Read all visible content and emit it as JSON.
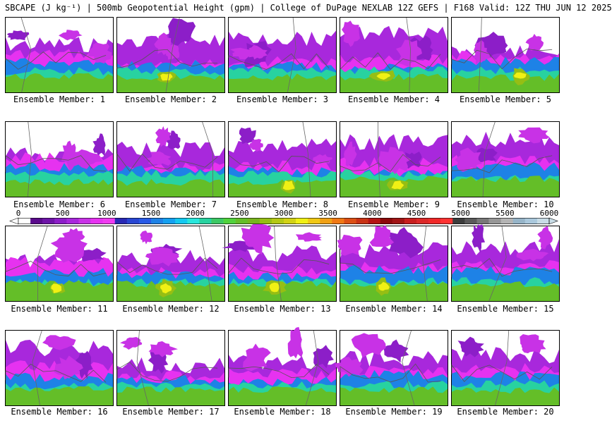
{
  "header": {
    "title": "SBCAPE (J kg⁻¹) | 500mb Geopotential Height (gpm) | College of DuPage NEXLAB 12Z GEFS | F168 Valid: 12Z THU JUN 12 2025"
  },
  "panels": [
    {
      "label": "Ensemble Member: 1",
      "core": false
    },
    {
      "label": "Ensemble Member: 2",
      "core": true
    },
    {
      "label": "Ensemble Member: 3",
      "core": false
    },
    {
      "label": "Ensemble Member: 4",
      "core": true
    },
    {
      "label": "Ensemble Member: 5",
      "core": true
    },
    {
      "label": "Ensemble Member: 6",
      "core": false
    },
    {
      "label": "Ensemble Member: 7",
      "core": false
    },
    {
      "label": "Ensemble Member: 8",
      "core": true
    },
    {
      "label": "Ensemble Member: 9",
      "core": true
    },
    {
      "label": "Ensemble Member: 10",
      "core": false
    },
    {
      "label": "Ensemble Member: 11",
      "core": true
    },
    {
      "label": "Ensemble Member: 12",
      "core": true
    },
    {
      "label": "Ensemble Member: 13",
      "core": true
    },
    {
      "label": "Ensemble Member: 14",
      "core": true
    },
    {
      "label": "Ensemble Member: 15",
      "core": false
    },
    {
      "label": "Ensemble Member: 16",
      "core": false
    },
    {
      "label": "Ensemble Member: 17",
      "core": false
    },
    {
      "label": "Ensemble Member: 18",
      "core": false
    },
    {
      "label": "Ensemble Member: 19",
      "core": false
    },
    {
      "label": "Ensemble Member: 20",
      "core": false
    }
  ],
  "colorbar": {
    "labels": [
      "0",
      "500",
      "1000",
      "1500",
      "2000",
      "2500",
      "3000",
      "3500",
      "4000",
      "4500",
      "5000",
      "5500",
      "6000"
    ],
    "min": 0,
    "max": 6000,
    "colors": [
      "#ffffff",
      "#5a0a8c",
      "#6e14a8",
      "#8c1ec8",
      "#a828dc",
      "#c832e6",
      "#e632f0",
      "#f03cf0",
      "#2828b4",
      "#2846d2",
      "#285ae6",
      "#1e82e6",
      "#14a0f0",
      "#14c8f0",
      "#28e6dc",
      "#28d2a0",
      "#3cc864",
      "#50d23c",
      "#64be28",
      "#78b41e",
      "#96be14",
      "#b4c814",
      "#d2d214",
      "#f0f014",
      "#f0c814",
      "#f0a014",
      "#f07814",
      "#dc5014",
      "#c83214",
      "#b41414",
      "#8c0a0a",
      "#a01414",
      "#c81e1e",
      "#dc2828",
      "#f02828",
      "#ff3232",
      "#3c3c3c",
      "#5a5a5a",
      "#787878",
      "#969696",
      "#b4b4b4",
      "#96b4c8",
      "#aac8dc",
      "#c8dce6"
    ]
  }
}
